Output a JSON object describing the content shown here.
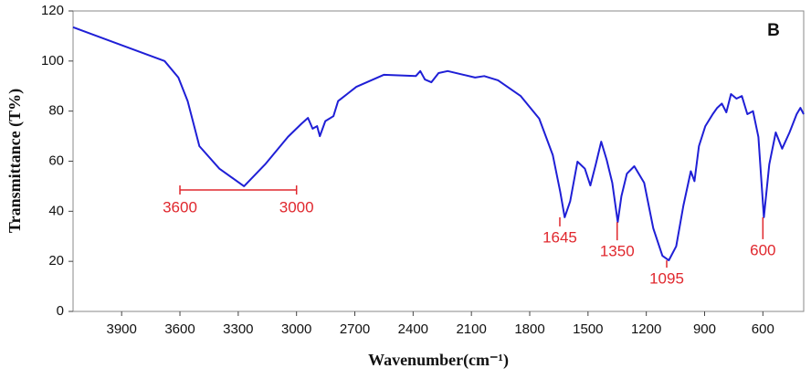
{
  "chart_data": {
    "type": "line",
    "panel_label": "B",
    "x_label": "Wavenumber(cm⁻¹)",
    "y_label": "Transmittance (T%)",
    "xlim": [
      4150,
      390
    ],
    "ylim": [
      0,
      120
    ],
    "xticks": [
      3900,
      3600,
      3300,
      3000,
      2700,
      2400,
      2100,
      1800,
      1500,
      1200,
      900,
      600
    ],
    "yticks": [
      0,
      20,
      40,
      60,
      80,
      100,
      120
    ],
    "series": [
      {
        "color": "#1f1fd6",
        "x": [
          4150,
          3773,
          3679,
          3608,
          3560,
          3500,
          3397,
          3270,
          3162,
          3044,
          2974,
          2941,
          2917,
          2894,
          2880,
          2852,
          2810,
          2786,
          2692,
          2551,
          2386,
          2363,
          2339,
          2306,
          2269,
          2222,
          2081,
          2034,
          1963,
          1846,
          1751,
          1681,
          1643,
          1620,
          1592,
          1554,
          1516,
          1488,
          1460,
          1432,
          1404,
          1375,
          1347,
          1328,
          1300,
          1262,
          1211,
          1164,
          1117,
          1084,
          1046,
          1009,
          971,
          952,
          929,
          896,
          858,
          835,
          811,
          788,
          764,
          736,
          708,
          680,
          651,
          623,
          595,
          567,
          534,
          501,
          463,
          426,
          407,
          390
        ],
        "values": [
          113.5,
          102.7,
          100,
          93.4,
          84,
          66,
          57,
          50,
          58.7,
          69.7,
          75,
          77.3,
          73,
          74,
          70,
          76,
          78,
          84,
          89.7,
          94.5,
          94,
          96,
          92.6,
          91.5,
          95.2,
          96,
          93.4,
          94,
          92.3,
          86,
          77,
          62.4,
          47.8,
          37.6,
          44,
          59.8,
          57,
          50.3,
          58.7,
          67.8,
          60.5,
          51.4,
          35.7,
          46,
          55,
          58,
          51.4,
          33.2,
          22.2,
          20.4,
          26,
          42.3,
          56,
          52,
          66,
          74,
          78.8,
          81.3,
          83,
          79.5,
          86.8,
          85,
          86,
          78.8,
          80,
          69.7,
          37.6,
          58.7,
          71.5,
          65,
          71.5,
          78.8,
          81.3,
          78.8
        ]
      }
    ],
    "range_annotation": {
      "x": [
        3600,
        3000
      ],
      "labels": [
        "3600",
        "3000"
      ],
      "y": 48.5,
      "color": "#e0282e"
    },
    "peak_annotations": [
      {
        "x": 1645,
        "y": 37.6,
        "label": "1645"
      },
      {
        "x": 1350,
        "y": 35.7,
        "label": "1350"
      },
      {
        "x": 1095,
        "y": 20.4,
        "label": "1095"
      },
      {
        "x": 600,
        "y": 37.6,
        "label": "600"
      }
    ]
  }
}
